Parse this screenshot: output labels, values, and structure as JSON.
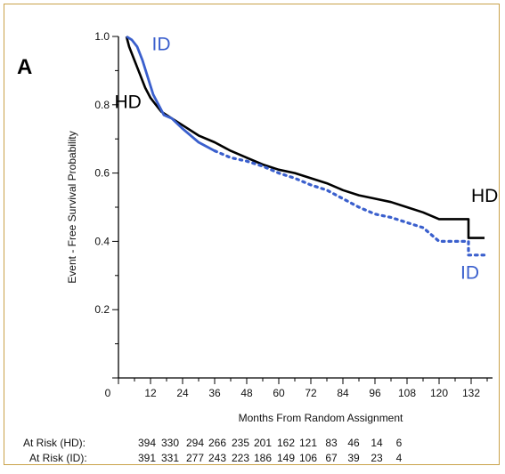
{
  "chart_data": {
    "type": "line",
    "panel_label": "A",
    "xlabel": "Months From Random Assignment",
    "ylabel": "Event - Free Survival Probability",
    "xlim": [
      0,
      140
    ],
    "ylim": [
      0,
      1.0
    ],
    "x_ticks": [
      0,
      12,
      24,
      36,
      48,
      60,
      72,
      84,
      96,
      108,
      120,
      132
    ],
    "y_ticks": [
      {
        "value": 0.2,
        "label": "0.2"
      },
      {
        "value": 0.4,
        "label": "0.4"
      },
      {
        "value": 0.6,
        "label": "0.6"
      },
      {
        "value": 0.8,
        "label": "0.8"
      },
      {
        "value": 1.0,
        "label": "1.0"
      }
    ],
    "series": [
      {
        "name": "HD",
        "color": "#000000",
        "style": "solid",
        "label_text": "HD",
        "points": [
          [
            3,
            1.0
          ],
          [
            4,
            0.97
          ],
          [
            6,
            0.93
          ],
          [
            8,
            0.89
          ],
          [
            10,
            0.85
          ],
          [
            12,
            0.82
          ],
          [
            14,
            0.8
          ],
          [
            16,
            0.78
          ],
          [
            20,
            0.76
          ],
          [
            24,
            0.74
          ],
          [
            30,
            0.71
          ],
          [
            36,
            0.69
          ],
          [
            42,
            0.665
          ],
          [
            48,
            0.645
          ],
          [
            54,
            0.625
          ],
          [
            60,
            0.61
          ],
          [
            66,
            0.6
          ],
          [
            72,
            0.585
          ],
          [
            78,
            0.57
          ],
          [
            84,
            0.55
          ],
          [
            90,
            0.535
          ],
          [
            96,
            0.525
          ],
          [
            102,
            0.515
          ],
          [
            108,
            0.5
          ],
          [
            114,
            0.485
          ],
          [
            120,
            0.465
          ],
          [
            126,
            0.465
          ],
          [
            131,
            0.465
          ],
          [
            131,
            0.41
          ],
          [
            137,
            0.41
          ]
        ]
      },
      {
        "name": "ID",
        "color": "#3a5fcd",
        "style": "solid-then-dotted",
        "solid_until": 36,
        "label_text": "ID",
        "points": [
          [
            3,
            1.0
          ],
          [
            5,
            0.99
          ],
          [
            7,
            0.97
          ],
          [
            9,
            0.93
          ],
          [
            11,
            0.88
          ],
          [
            13,
            0.83
          ],
          [
            15,
            0.8
          ],
          [
            17,
            0.77
          ],
          [
            20,
            0.76
          ],
          [
            24,
            0.73
          ],
          [
            30,
            0.69
          ],
          [
            36,
            0.665
          ],
          [
            42,
            0.645
          ],
          [
            48,
            0.635
          ],
          [
            54,
            0.62
          ],
          [
            60,
            0.6
          ],
          [
            66,
            0.585
          ],
          [
            72,
            0.565
          ],
          [
            78,
            0.55
          ],
          [
            84,
            0.525
          ],
          [
            90,
            0.5
          ],
          [
            96,
            0.48
          ],
          [
            102,
            0.47
          ],
          [
            108,
            0.455
          ],
          [
            114,
            0.44
          ],
          [
            120,
            0.4
          ],
          [
            126,
            0.4
          ],
          [
            131,
            0.4
          ],
          [
            131,
            0.36
          ],
          [
            137,
            0.36
          ]
        ]
      }
    ],
    "at_risk": [
      {
        "label": "At Risk (HD):",
        "values": [
          "394",
          "330",
          "294",
          "266",
          "235",
          "201",
          "162",
          "121",
          "83",
          "46",
          "14",
          "6"
        ]
      },
      {
        "label": "At Risk (ID):",
        "values": [
          "391",
          "331",
          "277",
          "243",
          "223",
          "186",
          "149",
          "106",
          "67",
          "39",
          "23",
          "4"
        ]
      }
    ]
  }
}
